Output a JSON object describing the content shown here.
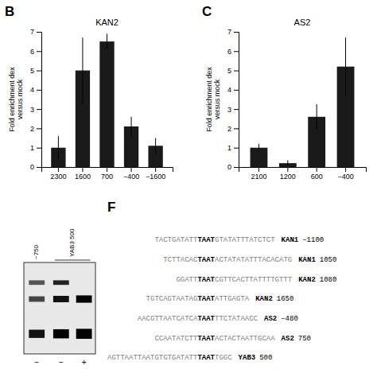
{
  "chart_data": [
    {
      "type": "bar",
      "title": "KAN2",
      "annotations": [
        "B"
      ],
      "categories": [
        "2300",
        "1600",
        "700",
        "−400",
        "−1600"
      ],
      "values": [
        1.0,
        5.0,
        6.5,
        2.1,
        1.1
      ],
      "errors": [
        0.6,
        1.7,
        0.4,
        0.5,
        0.4
      ],
      "color": "#1a1a1a",
      "ylim": [
        0,
        7
      ],
      "yticks": [
        0,
        1,
        2,
        3,
        4,
        5,
        6,
        7
      ],
      "ylabel": "Fold enrichment dex\nversus mock"
    },
    {
      "type": "bar",
      "title": "AS2",
      "annotations": [
        "C"
      ],
      "categories": [
        "2100",
        "1200",
        "600",
        "−400"
      ],
      "values": [
        1.0,
        0.2,
        2.6,
        5.2
      ],
      "errors": [
        0.2,
        0.15,
        0.65,
        1.5
      ],
      "color": "#1a1a1a",
      "ylim": [
        0,
        7
      ],
      "yticks": [
        0,
        1,
        2,
        3,
        4,
        5,
        6,
        7
      ],
      "ylabel": "Fold enrichment dex\nversus mock"
    },
    {
      "type": "sequences",
      "annotations": [
        "F",
        "−750",
        "YAB3 500"
      ],
      "categories": [
        "−",
        "−",
        "+"
      ],
      "color": "#808080",
      "sequences": [
        {
          "pre": "TACTGATATT",
          "bold": "TAAT",
          "post": "GTATATTTATCTCT",
          "gene": "KAN1",
          "pos": "−1100"
        },
        {
          "pre": "TCTTACAC",
          "bold": "TAAT",
          "post": "ACTATATATTTACACATG",
          "gene": "KAN1",
          "pos": "1050"
        },
        {
          "pre": "GGATT",
          "bold": "TAAT",
          "post": "CGTTCACTTATTTTGTTT",
          "gene": "KAN2",
          "pos": "1080"
        },
        {
          "pre": "TGTCAGTAATAG",
          "bold": "TAAT",
          "post": "ATTGAGTA",
          "gene": "KAN2",
          "pos": "1650"
        },
        {
          "pre": "AACGTTAATCATCA",
          "bold": "TAAT",
          "post": "TTCTATAACC",
          "gene": "AS2",
          "pos": "−480"
        },
        {
          "pre": "CCAATATCTT",
          "bold": "TAAT",
          "post": "ACTACTAATTGCAA",
          "gene": "AS2",
          "pos": "750"
        },
        {
          "pre": "AGTTAATTAATGTGTGATATT",
          "bold": "TAAT",
          "post": "TGGC",
          "gene": "YAB3",
          "pos": "500"
        }
      ]
    }
  ]
}
